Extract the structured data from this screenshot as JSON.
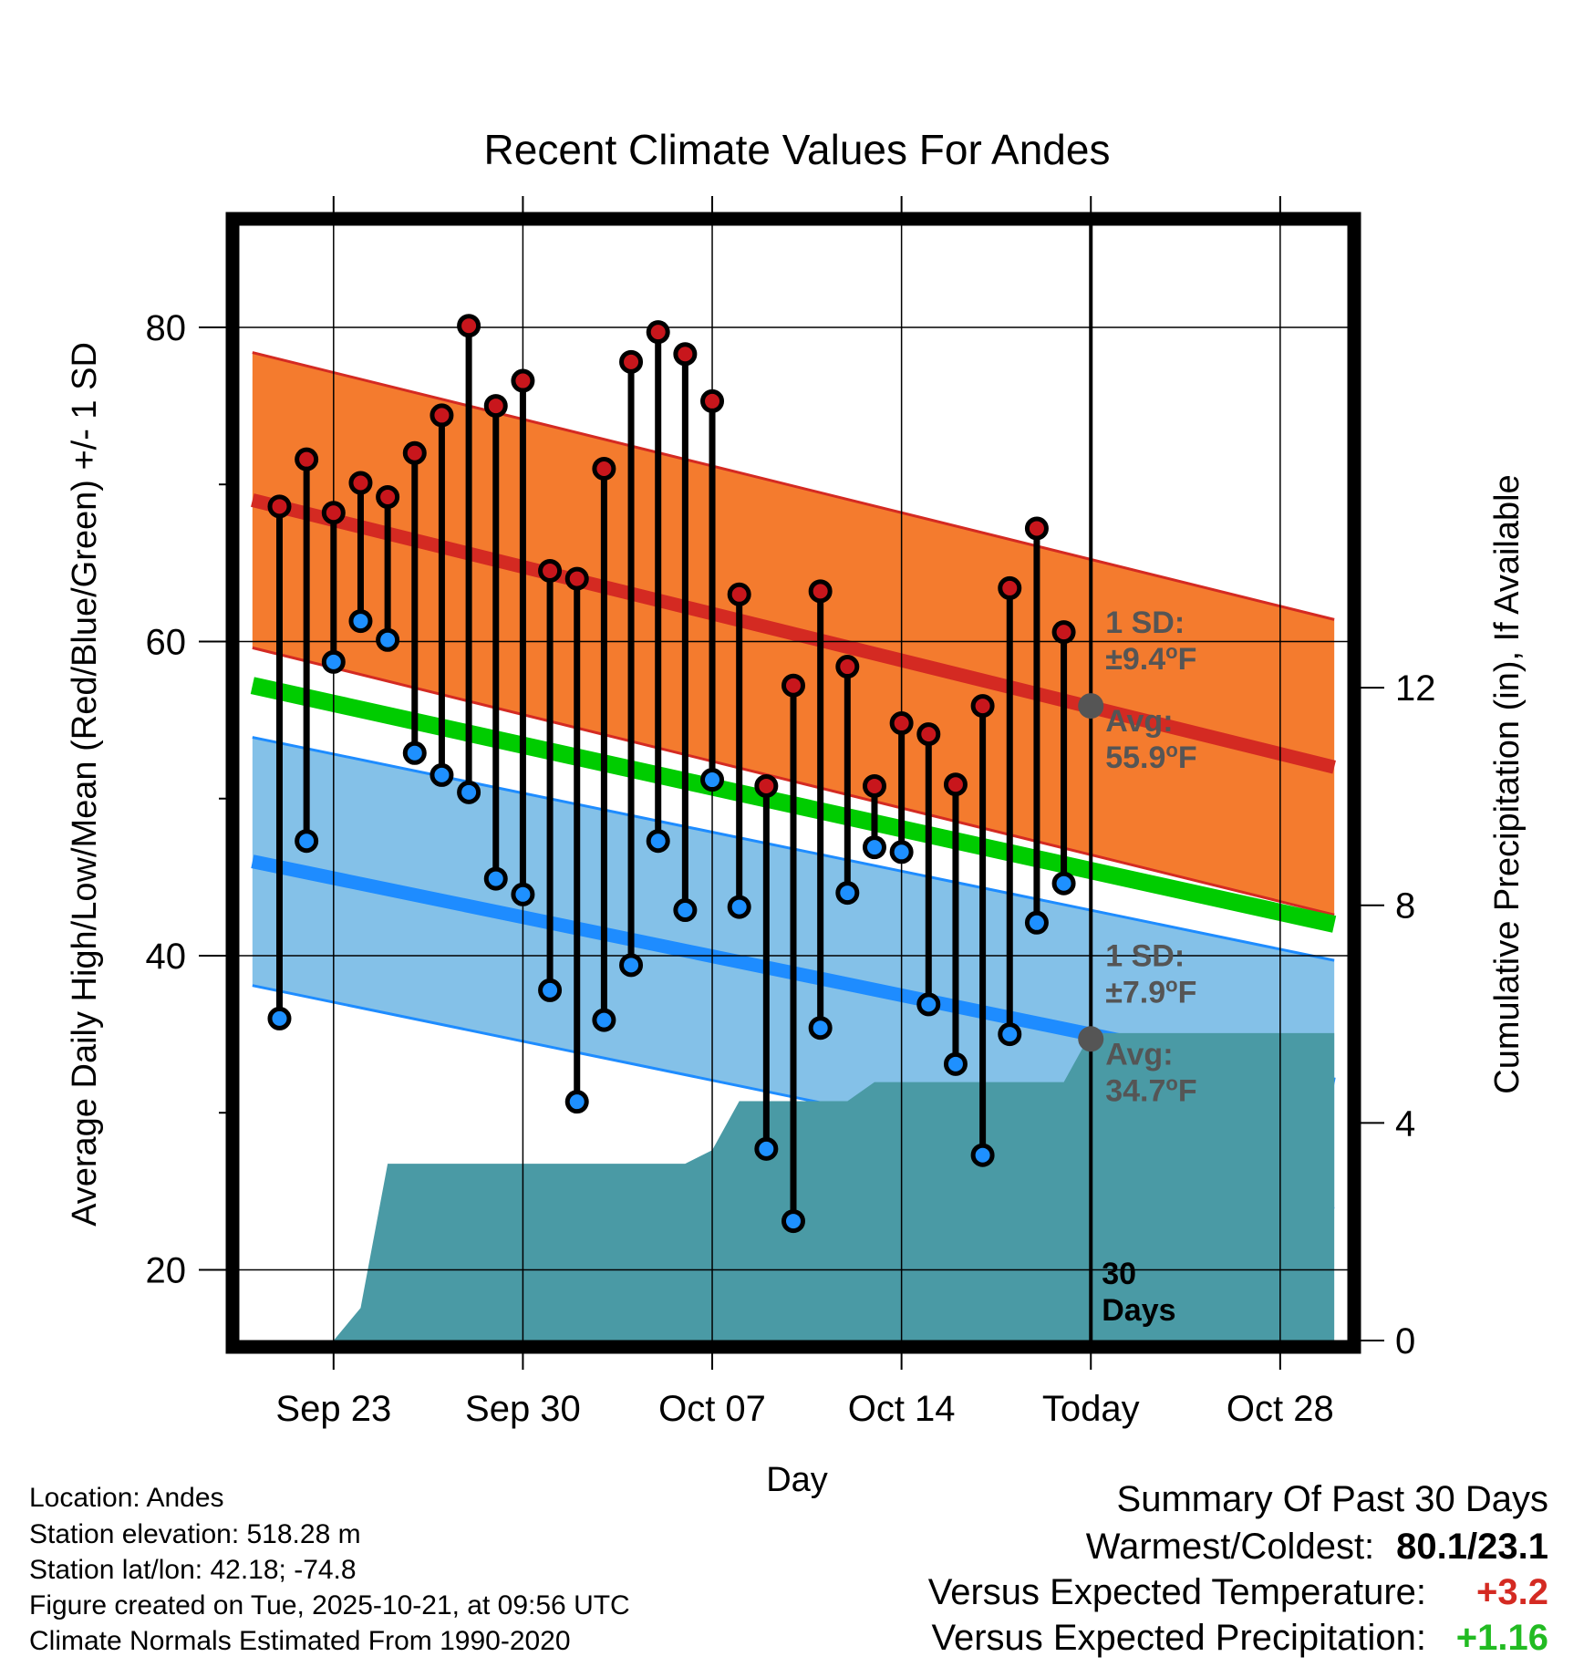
{
  "chart_data": {
    "type": "line",
    "title": "Recent Climate Values For Andes",
    "xlabel": "Day",
    "ylabel": "Average Daily High/Low/Mean (Red/Blue/Green) +/- 1 SD",
    "y2label": "Cumulative Precipitation (in), If Available",
    "ylim": [
      15.5,
      86.5
    ],
    "y2lim": [
      0,
      20.5
    ],
    "xlim": [
      -3.5,
      37.5
    ],
    "y_ticks": [
      {
        "v": 20,
        "label": "20"
      },
      {
        "v": 40,
        "label": "40"
      },
      {
        "v": 60,
        "label": "60"
      },
      {
        "v": 80,
        "label": "80"
      }
    ],
    "y_minor_ticks": [
      30,
      50,
      70
    ],
    "y2_ticks": [
      {
        "v": 0,
        "label": "0"
      },
      {
        "v": 4,
        "label": "4"
      },
      {
        "v": 8,
        "label": "8"
      },
      {
        "v": 12,
        "label": "12"
      }
    ],
    "x_ticks": [
      {
        "day": 0,
        "label": "Sep 23"
      },
      {
        "day": 7,
        "label": "Sep 30"
      },
      {
        "day": 14,
        "label": "Oct 07"
      },
      {
        "day": 21,
        "label": "Oct 14"
      },
      {
        "day": 28,
        "label": "Today"
      },
      {
        "day": 35,
        "label": "Oct 28"
      }
    ],
    "today_day": 28,
    "today_label": [
      "30",
      "Days"
    ],
    "days": [
      -2,
      -1,
      0,
      1,
      2,
      3,
      4,
      5,
      6,
      7,
      8,
      9,
      10,
      11,
      12,
      13,
      14,
      15,
      16,
      17,
      18,
      19,
      20,
      21,
      22,
      23,
      24,
      25,
      26,
      27
    ],
    "highs": [
      68.6,
      71.6,
      68.2,
      70.1,
      69.2,
      72.0,
      74.4,
      80.1,
      75.0,
      76.6,
      64.5,
      64.0,
      71.0,
      77.8,
      79.7,
      78.3,
      75.3,
      63.0,
      50.8,
      57.2,
      63.2,
      58.4,
      50.8,
      54.8,
      54.1,
      50.9,
      55.9,
      63.4,
      67.2,
      60.6
    ],
    "lows": [
      36.0,
      47.3,
      58.7,
      61.3,
      60.1,
      52.9,
      51.5,
      50.4,
      44.9,
      43.9,
      37.8,
      30.7,
      35.9,
      39.4,
      47.3,
      42.9,
      51.2,
      43.1,
      27.7,
      23.1,
      35.4,
      44.0,
      46.9,
      46.6,
      36.9,
      33.1,
      27.3,
      35.0,
      42.1,
      44.6
    ],
    "normals": {
      "start_day": -3,
      "end_day": 37,
      "high_avg": [
        69.0,
        52.0
      ],
      "high_sd": 9.4,
      "low_avg": [
        46.0,
        31.8
      ],
      "low_sd": 7.9,
      "mean_avg": [
        57.2,
        42.0
      ]
    },
    "precip_cumulative": {
      "x": [
        0,
        1,
        2,
        13,
        14,
        15,
        19,
        20,
        27,
        28,
        37
      ],
      "y": [
        0,
        0.6,
        3.25,
        3.25,
        3.5,
        4.4,
        4.4,
        4.75,
        4.75,
        5.65,
        5.65
      ]
    },
    "annotations": {
      "high_sd_label": "1 SD:",
      "high_sd_value": "±9.4°F",
      "high_avg_label": "Avg:",
      "high_avg_value": "55.9°F",
      "low_sd_label": "1 SD:",
      "low_sd_value": "±7.9°F",
      "low_avg_label": "Avg:",
      "low_avg_value": "34.7°F",
      "high_today_avg": 55.9,
      "low_today_avg": 34.7
    },
    "colors": {
      "high_band": "#f47b2e",
      "high_line": "#d42a22",
      "high_dot": "#c8161c",
      "low_band": "#84c1e8",
      "low_line": "#1e8cff",
      "low_dot": "#1e90ff",
      "mean_line": "#00cc00",
      "precip": "#4a9aa5",
      "annotation": "#555555"
    }
  },
  "metadata": {
    "lines": [
      "Location: Andes",
      "Station elevation: 518.28 m",
      "Station lat/lon: 42.18; -74.8",
      "Figure created on Tue, 2025-10-21, at 09:56 UTC",
      "Climate Normals Estimated From 1990-2020"
    ]
  },
  "summary": {
    "title": "Summary Of Past 30 Days",
    "rows": [
      {
        "label": "Warmest/Coldest:",
        "value": "80.1/23.1",
        "color": "#000000"
      },
      {
        "label": "Versus Expected Temperature:",
        "value": "+3.2",
        "color": "#d42a22"
      },
      {
        "label": "Versus Expected Precipitation:",
        "value": "+1.16",
        "color": "#22bb22"
      }
    ]
  }
}
